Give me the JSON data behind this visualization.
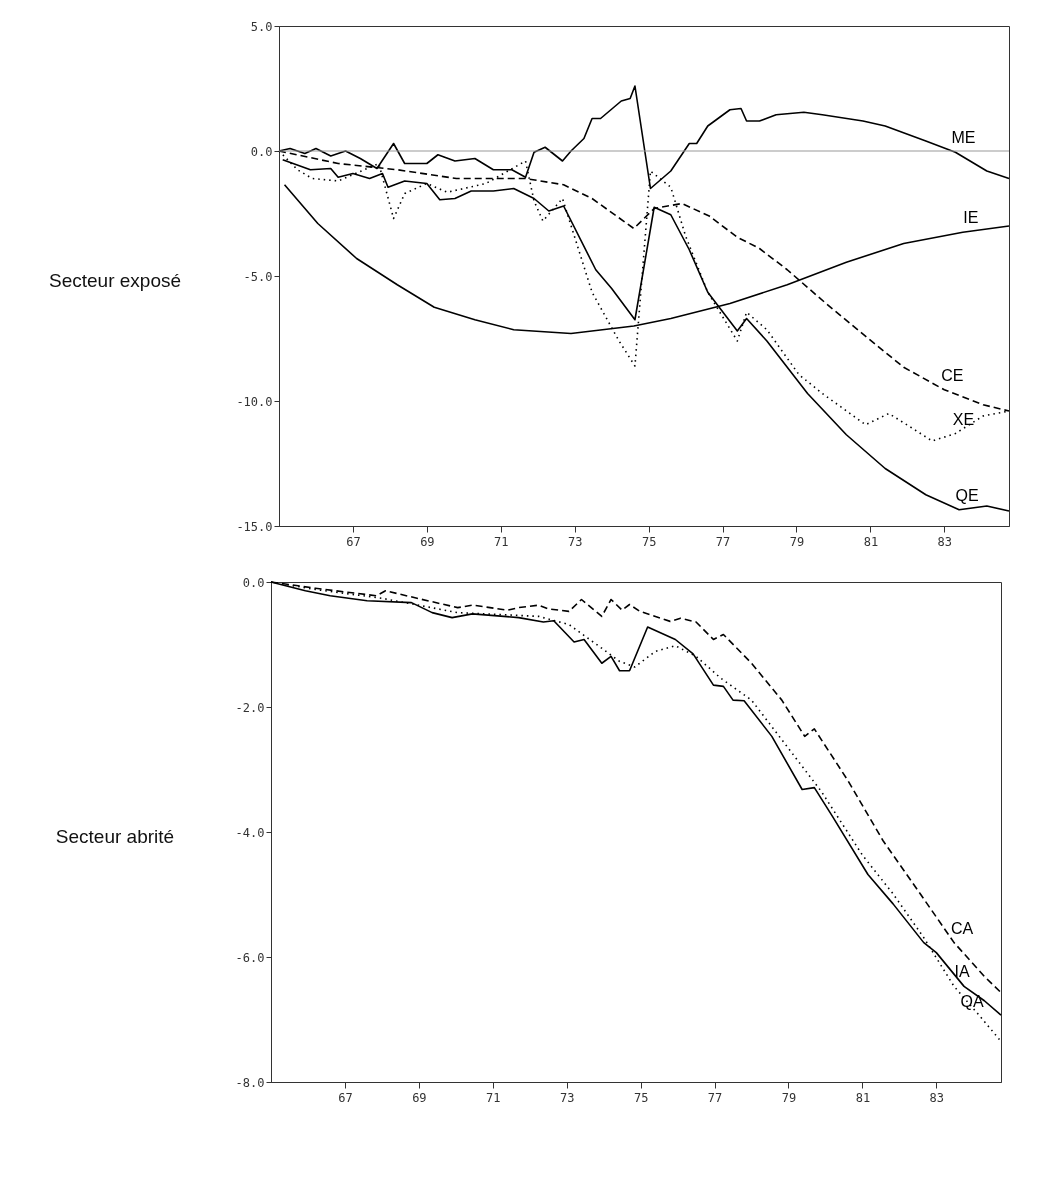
{
  "chart_data": [
    {
      "type": "line",
      "title": "Secteur exposé",
      "xlim": [
        65,
        84.75
      ],
      "xticks": [
        67,
        69,
        71,
        73,
        75,
        77,
        79,
        81,
        83
      ],
      "ylim": [
        -15,
        5
      ],
      "yticks": [
        {
          "value": -15,
          "label": "-15.0"
        },
        {
          "value": -10,
          "label": "-10.0"
        },
        {
          "value": -5,
          "label": "-5.0"
        },
        {
          "value": 0,
          "label": "0.0"
        },
        {
          "value": 5,
          "label": "5.0"
        }
      ],
      "ref_lines": [
        {
          "axis": "y",
          "value": 0,
          "color": "#999999"
        }
      ],
      "series": [
        {
          "name": "ME",
          "color": "#000000",
          "line_style": "solid",
          "x": [
            65,
            65.3,
            65.7,
            66.0,
            66.4,
            66.8,
            67.2,
            67.65,
            68.1,
            68.4,
            69.0,
            69.3,
            69.76,
            70.3,
            70.8,
            71.3,
            71.67,
            71.9,
            72.2,
            72.67,
            72.9,
            73.25,
            73.47,
            73.7,
            74.26,
            74.5,
            74.63,
            75.05,
            75.6,
            76.1,
            76.3,
            76.6,
            77.2,
            77.5,
            77.65,
            78.0,
            78.45,
            79.2,
            79.7,
            80.8,
            81.4,
            82.5,
            83.3,
            84.15,
            84.75
          ],
          "values": [
            0,
            0.1,
            -0.1,
            0.1,
            -0.2,
            0,
            -0.3,
            -0.7,
            0.3,
            -0.5,
            -0.5,
            -0.15,
            -0.4,
            -0.3,
            -0.75,
            -0.75,
            -1.05,
            -0.05,
            0.15,
            -0.4,
            0,
            0.5,
            1.3,
            1.3,
            2.0,
            2.1,
            2.6,
            -1.5,
            -0.8,
            0.3,
            0.3,
            1.0,
            1.65,
            1.7,
            1.2,
            1.2,
            1.45,
            1.55,
            1.45,
            1.2,
            1.0,
            0.4,
            -0.05,
            -0.8,
            -1.1
          ]
        },
        {
          "name": "IE",
          "color": "#000000",
          "line_style": "solid",
          "x": [
            65.15,
            66.05,
            67.1,
            68.2,
            69.2,
            70.3,
            71.35,
            72.9,
            74.6,
            75.6,
            77.2,
            78.75,
            80.35,
            81.9,
            83.5,
            84.75
          ],
          "values": [
            -1.35,
            -2.9,
            -4.3,
            -5.35,
            -6.25,
            -6.75,
            -7.15,
            -7.3,
            -7.0,
            -6.7,
            -6.1,
            -5.35,
            -4.45,
            -3.7,
            -3.25,
            -3.0
          ]
        },
        {
          "name": "CE",
          "color": "#000000",
          "line_style": "dashed",
          "x": [
            65,
            66.6,
            68.2,
            69.8,
            71.67,
            72.7,
            73.47,
            74.6,
            75.15,
            75.9,
            76.64,
            77.4,
            78.0,
            78.75,
            79.8,
            80.9,
            81.9,
            83.0,
            84.05,
            84.75
          ],
          "values": [
            0,
            -0.5,
            -0.75,
            -1.1,
            -1.1,
            -1.35,
            -1.9,
            -3.1,
            -2.3,
            -2.1,
            -2.6,
            -3.45,
            -3.9,
            -4.75,
            -6.1,
            -7.45,
            -8.65,
            -9.55,
            -10.15,
            -10.4
          ]
        },
        {
          "name": "XE",
          "color": "#000000",
          "line_style": "dotted",
          "x": [
            65,
            65.5,
            65.9,
            66.6,
            67.7,
            68.1,
            68.4,
            69.0,
            69.55,
            70.6,
            71.67,
            71.9,
            72.14,
            72.67,
            73.47,
            74.2,
            74.63,
            75.05,
            75.6,
            76.0,
            76.6,
            77.4,
            77.65,
            78.2,
            79.07,
            79.7,
            80.87,
            81.5,
            82.04,
            82.67,
            83.3,
            84.05,
            84.75
          ],
          "values": [
            0,
            -0.75,
            -1.1,
            -1.2,
            -0.5,
            -2.7,
            -1.7,
            -1.3,
            -1.65,
            -1.3,
            -0.4,
            -2.0,
            -2.8,
            -1.9,
            -5.65,
            -7.6,
            -8.6,
            -0.8,
            -1.45,
            -3.4,
            -5.65,
            -7.6,
            -6.45,
            -7.15,
            -8.95,
            -9.7,
            -10.95,
            -10.5,
            -11.0,
            -11.6,
            -11.3,
            -10.6,
            -10.4
          ]
        },
        {
          "name": "QE",
          "color": "#000000",
          "line_style": "solid",
          "x": [
            65.1,
            65.85,
            66.4,
            66.6,
            67.0,
            67.45,
            67.8,
            67.95,
            68.4,
            69.0,
            69.35,
            69.76,
            70.2,
            70.8,
            71.35,
            71.9,
            72.3,
            72.7,
            73.57,
            74.0,
            74.63,
            75.15,
            75.6,
            76.1,
            76.6,
            77.4,
            77.65,
            78.2,
            79.3,
            80.35,
            81.4,
            82.5,
            83.4,
            84.15,
            84.75
          ],
          "values": [
            -0.35,
            -0.75,
            -0.7,
            -1.05,
            -0.9,
            -1.1,
            -0.9,
            -1.45,
            -1.2,
            -1.3,
            -1.95,
            -1.9,
            -1.6,
            -1.6,
            -1.5,
            -1.9,
            -2.4,
            -2.2,
            -4.75,
            -5.5,
            -6.75,
            -2.25,
            -2.55,
            -3.95,
            -5.65,
            -7.2,
            -6.7,
            -7.6,
            -9.7,
            -11.35,
            -12.7,
            -13.75,
            -14.35,
            -14.2,
            -14.4
          ]
        }
      ]
    },
    {
      "type": "line",
      "title": "Secteur abrité",
      "xlim": [
        65,
        84.75
      ],
      "xticks": [
        67,
        69,
        71,
        73,
        75,
        77,
        79,
        81,
        83
      ],
      "ylim": [
        -8,
        0
      ],
      "yticks": [
        {
          "value": -8,
          "label": "-8.0"
        },
        {
          "value": -6,
          "label": "-6.0"
        },
        {
          "value": -4,
          "label": "-4.0"
        },
        {
          "value": -2,
          "label": "-2.0"
        },
        {
          "value": 0,
          "label": "0.0"
        }
      ],
      "series": [
        {
          "name": "QA",
          "color": "#000000",
          "line_style": "solid",
          "x": [
            65,
            65.93,
            66.6,
            67.6,
            68.8,
            69.36,
            69.9,
            70.45,
            71.7,
            72.37,
            72.65,
            73.2,
            73.47,
            73.95,
            74.2,
            74.43,
            74.7,
            75.19,
            75.94,
            76.42,
            76.97,
            77.24,
            77.5,
            77.8,
            78.55,
            79.37,
            79.7,
            80.19,
            81.15,
            81.83,
            82.66,
            83.0,
            83.75,
            84.3,
            84.75
          ],
          "values": [
            0,
            -0.14,
            -0.22,
            -0.3,
            -0.33,
            -0.49,
            -0.57,
            -0.51,
            -0.57,
            -0.64,
            -0.62,
            -0.96,
            -0.92,
            -1.3,
            -1.19,
            -1.42,
            -1.42,
            -0.72,
            -0.92,
            -1.15,
            -1.65,
            -1.67,
            -1.89,
            -1.9,
            -2.47,
            -3.32,
            -3.29,
            -3.75,
            -4.68,
            -5.15,
            -5.77,
            -5.93,
            -6.47,
            -6.7,
            -6.93
          ]
        },
        {
          "name": "CA",
          "color": "#000000",
          "line_style": "dashed",
          "x": [
            65,
            66.2,
            67.85,
            68.1,
            68.95,
            70.05,
            70.45,
            71.4,
            71.7,
            72.24,
            72.5,
            73.06,
            73.4,
            73.95,
            74.2,
            74.5,
            74.7,
            74.98,
            75.8,
            76.08,
            76.5,
            76.97,
            77.24,
            78.0,
            78.82,
            79.44,
            79.7,
            80.6,
            81.56,
            82.66,
            83.48,
            84.3,
            84.75
          ],
          "values": [
            0,
            -0.1,
            -0.22,
            -0.14,
            -0.26,
            -0.41,
            -0.37,
            -0.45,
            -0.41,
            -0.37,
            -0.43,
            -0.47,
            -0.28,
            -0.55,
            -0.28,
            -0.45,
            -0.36,
            -0.47,
            -0.63,
            -0.58,
            -0.64,
            -0.92,
            -0.84,
            -1.3,
            -1.89,
            -2.47,
            -2.35,
            -3.17,
            -4.14,
            -5.07,
            -5.77,
            -6.31,
            -6.57
          ]
        },
        {
          "name": "IA",
          "color": "#000000",
          "line_style": "dotted",
          "x": [
            65,
            66.2,
            68.0,
            70.05,
            72.24,
            73.06,
            73.88,
            74.43,
            74.84,
            75.4,
            75.94,
            76.5,
            77.17,
            78.0,
            79.1,
            79.9,
            81.0,
            81.83,
            82.66,
            83.48,
            84.17,
            84.75
          ],
          "values": [
            0,
            -0.12,
            -0.26,
            -0.49,
            -0.55,
            -0.68,
            -1.03,
            -1.27,
            -1.36,
            -1.11,
            -1.02,
            -1.19,
            -1.54,
            -1.89,
            -2.74,
            -3.36,
            -4.37,
            -4.99,
            -5.69,
            -6.47,
            -6.94,
            -7.35
          ]
        }
      ]
    }
  ]
}
